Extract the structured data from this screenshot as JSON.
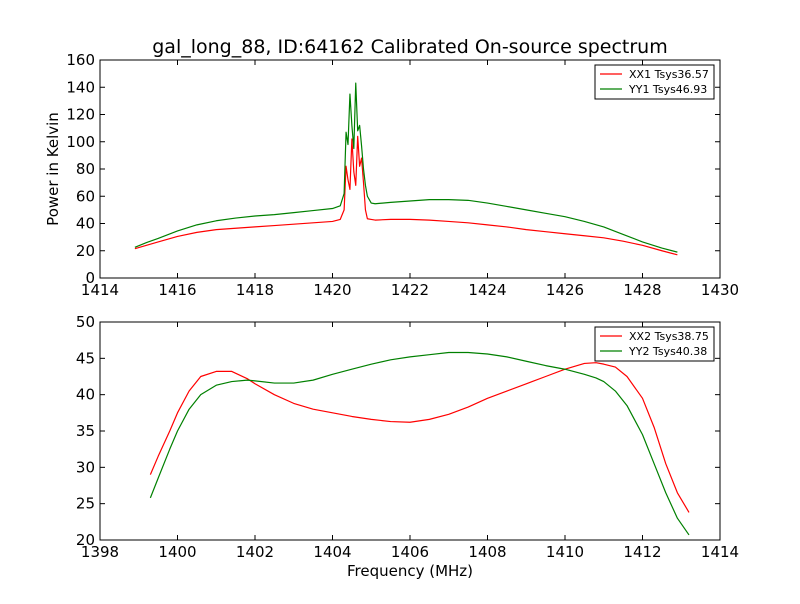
{
  "figure": {
    "title": "gal_long_88, ID:64162 Calibrated On-source spectrum"
  },
  "chart_data": [
    {
      "type": "line",
      "title": "gal_long_88, ID:64162 Calibrated On-source spectrum",
      "xlabel": "",
      "ylabel": "Power in Kelvin",
      "xlim": [
        1414,
        1430
      ],
      "ylim": [
        0,
        160
      ],
      "xticks": [
        "1414",
        "1416",
        "1418",
        "1420",
        "1422",
        "1424",
        "1426",
        "1428",
        "1430"
      ],
      "yticks": [
        "0",
        "20",
        "40",
        "60",
        "80",
        "100",
        "120",
        "140",
        "160"
      ],
      "legend_position": "top-right",
      "grid": false,
      "series": [
        {
          "name": "XX1 Tsys36.57",
          "color": "#ff0000",
          "x": [
            1414.9,
            1415.2,
            1415.5,
            1416.0,
            1416.5,
            1417.0,
            1417.5,
            1418.0,
            1418.5,
            1419.0,
            1419.5,
            1420.0,
            1420.2,
            1420.3,
            1420.35,
            1420.4,
            1420.45,
            1420.5,
            1420.55,
            1420.6,
            1420.65,
            1420.7,
            1420.75,
            1420.8,
            1420.85,
            1420.9,
            1421.0,
            1421.1,
            1421.5,
            1422.0,
            1422.5,
            1423.0,
            1423.5,
            1424.0,
            1424.5,
            1425.0,
            1425.5,
            1426.0,
            1426.5,
            1427.0,
            1427.5,
            1428.0,
            1428.5,
            1428.9
          ],
          "y": [
            21.5,
            24,
            26.5,
            30.5,
            33.5,
            35.5,
            36.5,
            37.5,
            38.5,
            39.5,
            40.5,
            41.5,
            43,
            50,
            82,
            72,
            65,
            102,
            78,
            68,
            104,
            82,
            88,
            70,
            50,
            43.5,
            43,
            42.5,
            43,
            43,
            42.5,
            41.5,
            40.5,
            39,
            37.5,
            35.5,
            34,
            32.5,
            31,
            29.5,
            27,
            24,
            20,
            17
          ]
        },
        {
          "name": "YY1 Tsys46.93",
          "color": "#008000",
          "x": [
            1414.9,
            1415.2,
            1415.5,
            1416.0,
            1416.5,
            1417.0,
            1417.5,
            1418.0,
            1418.5,
            1419.0,
            1419.5,
            1420.0,
            1420.2,
            1420.3,
            1420.35,
            1420.4,
            1420.45,
            1420.5,
            1420.55,
            1420.6,
            1420.65,
            1420.7,
            1420.75,
            1420.8,
            1420.85,
            1420.9,
            1421.0,
            1421.1,
            1421.5,
            1422.0,
            1422.5,
            1423.0,
            1423.5,
            1424.0,
            1424.5,
            1425.0,
            1425.5,
            1426.0,
            1426.5,
            1427.0,
            1427.5,
            1428.0,
            1428.5,
            1428.9
          ],
          "y": [
            22.5,
            26,
            29,
            34.5,
            39,
            42,
            44,
            45.5,
            46.5,
            48,
            49.5,
            51,
            53,
            62,
            107,
            98,
            135,
            112,
            95,
            143,
            108,
            112,
            97,
            80,
            68,
            60,
            55,
            54.5,
            55.5,
            56.5,
            57.5,
            57.5,
            57,
            55,
            52.5,
            50,
            47.5,
            45,
            41.5,
            37.5,
            32,
            26.5,
            22,
            19
          ]
        }
      ]
    },
    {
      "type": "line",
      "xlabel": "Frequency (MHz)",
      "ylabel": "",
      "xlim": [
        1398,
        1414
      ],
      "ylim": [
        20,
        50
      ],
      "xticks": [
        "1398",
        "1400",
        "1402",
        "1404",
        "1406",
        "1408",
        "1410",
        "1412",
        "1414"
      ],
      "yticks": [
        "20",
        "25",
        "30",
        "35",
        "40",
        "45",
        "50"
      ],
      "legend_position": "top-right",
      "grid": false,
      "series": [
        {
          "name": "XX2 Tsys38.75",
          "color": "#ff0000",
          "x": [
            1399.3,
            1399.5,
            1399.8,
            1400.0,
            1400.3,
            1400.6,
            1401.0,
            1401.4,
            1401.8,
            1402.0,
            1402.5,
            1403.0,
            1403.5,
            1404.0,
            1404.5,
            1405.0,
            1405.5,
            1406.0,
            1406.5,
            1407.0,
            1407.5,
            1408.0,
            1408.5,
            1409.0,
            1409.5,
            1410.0,
            1410.5,
            1410.8,
            1411.0,
            1411.3,
            1411.6,
            1412.0,
            1412.3,
            1412.6,
            1412.9,
            1413.2
          ],
          "y": [
            29,
            31.5,
            35,
            37.5,
            40.5,
            42.5,
            43.2,
            43.2,
            42.2,
            41.5,
            40,
            38.8,
            38,
            37.5,
            37,
            36.6,
            36.3,
            36.2,
            36.6,
            37.3,
            38.3,
            39.5,
            40.5,
            41.5,
            42.5,
            43.5,
            44.3,
            44.4,
            44.2,
            43.8,
            42.5,
            39.5,
            35.5,
            30.5,
            26.5,
            23.8
          ]
        },
        {
          "name": "YY2 Tsys40.38",
          "color": "#008000",
          "x": [
            1399.3,
            1399.5,
            1399.8,
            1400.0,
            1400.3,
            1400.6,
            1401.0,
            1401.4,
            1401.8,
            1402.0,
            1402.5,
            1403.0,
            1403.5,
            1404.0,
            1404.5,
            1405.0,
            1405.5,
            1406.0,
            1406.5,
            1407.0,
            1407.5,
            1408.0,
            1408.5,
            1409.0,
            1409.5,
            1410.0,
            1410.5,
            1410.8,
            1411.0,
            1411.3,
            1411.6,
            1412.0,
            1412.3,
            1412.6,
            1412.9,
            1413.2
          ],
          "y": [
            25.8,
            28.5,
            32.5,
            35,
            38,
            40,
            41.3,
            41.8,
            42,
            41.9,
            41.6,
            41.6,
            42,
            42.8,
            43.5,
            44.2,
            44.8,
            45.2,
            45.5,
            45.8,
            45.8,
            45.6,
            45.2,
            44.6,
            44,
            43.5,
            42.8,
            42.3,
            41.8,
            40.5,
            38.5,
            34.5,
            30.5,
            26.5,
            23,
            20.7
          ]
        }
      ]
    }
  ]
}
